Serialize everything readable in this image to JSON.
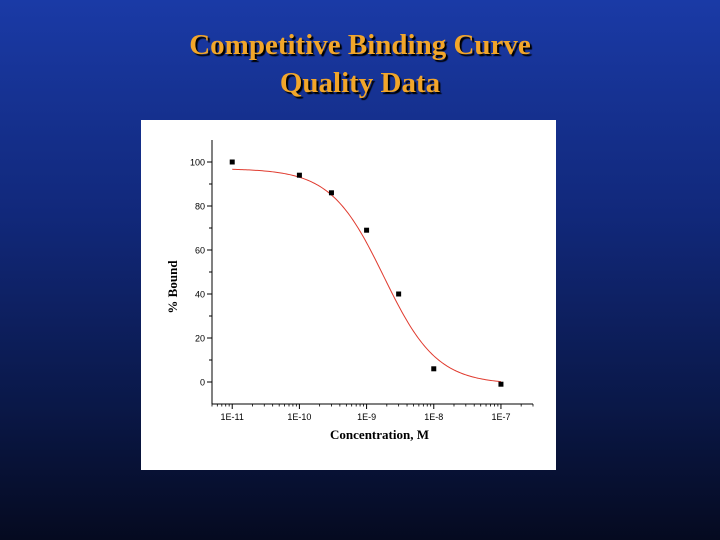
{
  "slide": {
    "title_line1": "Competitive Binding Curve",
    "title_line2": "Quality Data",
    "title_color": "#f2a62a"
  },
  "chart_data": {
    "type": "scatter",
    "title": "",
    "xlabel": "Concentration, M",
    "ylabel": "% Bound",
    "x_scale": "log",
    "x_ticks": [
      "1E-11",
      "1E-10",
      "1E-9",
      "1E-8",
      "1E-7"
    ],
    "y_ticks": [
      "0",
      "20",
      "40",
      "60",
      "80",
      "100"
    ],
    "xlim": [
      5e-12,
      3e-07
    ],
    "ylim": [
      -10,
      110
    ],
    "grid": false,
    "series": [
      {
        "points": [
          {
            "x": 1e-11,
            "y": 100
          },
          {
            "x": 1e-10,
            "y": 94
          },
          {
            "x": 3e-10,
            "y": 86
          },
          {
            "x": 1e-09,
            "y": 69
          },
          {
            "x": 3e-09,
            "y": 40
          },
          {
            "x": 1e-08,
            "y": 6
          },
          {
            "x": 1e-07,
            "y": -1
          }
        ],
        "marker_color": "#000000"
      }
    ],
    "fit_curve": {
      "model": "sigmoidal dose-response",
      "top": 97,
      "bottom": -1,
      "ic50": 1.8e-09,
      "hill_slope": 1.1,
      "color": "#e03a2e"
    }
  }
}
